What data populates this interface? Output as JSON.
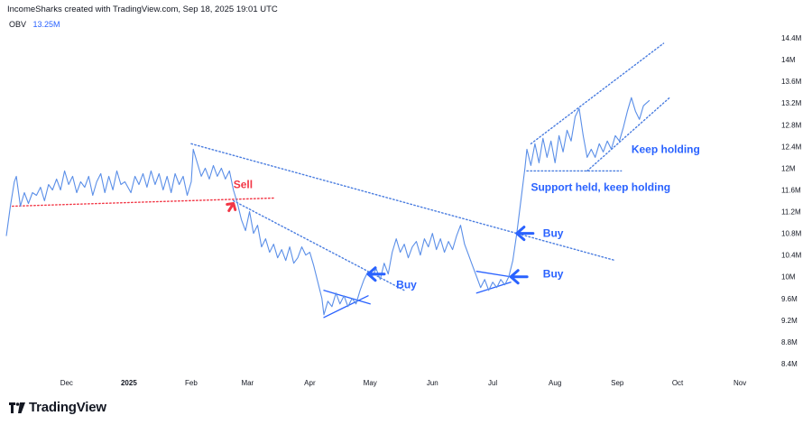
{
  "header": {
    "credit": "IncomeSharks created with TradingView.com, Sep 18, 2025 19:01 UTC"
  },
  "legend": {
    "indicator": "OBV",
    "value": "13.25M"
  },
  "footer": {
    "brand": "TradingView",
    "logo_icon": "tradingview-logo-icon"
  },
  "colors": {
    "line": "#5b8fe8",
    "accent": "#2962ff",
    "sell": "#f23645",
    "dots": "#4a7de0"
  },
  "chart_data": {
    "type": "line",
    "title": "",
    "xlabel": "",
    "ylabel": "",
    "y_unit": "M",
    "ylim": [
      8.2,
      14.6
    ],
    "x_range": [
      "2024-11-01",
      "2025-11-18"
    ],
    "y_ticks": [
      "14.4M",
      "14M",
      "13.6M",
      "13.2M",
      "12.8M",
      "12.4M",
      "12M",
      "11.6M",
      "11.2M",
      "10.8M",
      "10.4M",
      "10M",
      "9.6M",
      "9.2M",
      "8.8M",
      "8.4M"
    ],
    "x_ticks": [
      {
        "label": "Dec",
        "date": "2024-12-01"
      },
      {
        "label": "2025",
        "date": "2025-01-01",
        "bold": true
      },
      {
        "label": "Feb",
        "date": "2025-02-01"
      },
      {
        "label": "Mar",
        "date": "2025-03-01"
      },
      {
        "label": "Apr",
        "date": "2025-04-01"
      },
      {
        "label": "May",
        "date": "2025-05-01"
      },
      {
        "label": "Jun",
        "date": "2025-06-01"
      },
      {
        "label": "Jul",
        "date": "2025-07-01"
      },
      {
        "label": "Aug",
        "date": "2025-08-01"
      },
      {
        "label": "Sep",
        "date": "2025-09-01"
      },
      {
        "label": "Oct",
        "date": "2025-10-01"
      },
      {
        "label": "Nov",
        "date": "2025-11-01"
      }
    ],
    "series": [
      {
        "name": "OBV",
        "points": [
          [
            "2024-11-01",
            10.75
          ],
          [
            "2024-11-03",
            11.3
          ],
          [
            "2024-11-05",
            11.75
          ],
          [
            "2024-11-06",
            11.85
          ],
          [
            "2024-11-08",
            11.3
          ],
          [
            "2024-11-10",
            11.55
          ],
          [
            "2024-11-12",
            11.35
          ],
          [
            "2024-11-14",
            11.55
          ],
          [
            "2024-11-16",
            11.5
          ],
          [
            "2024-11-18",
            11.65
          ],
          [
            "2024-11-20",
            11.4
          ],
          [
            "2024-11-22",
            11.7
          ],
          [
            "2024-11-24",
            11.6
          ],
          [
            "2024-11-26",
            11.8
          ],
          [
            "2024-11-28",
            11.6
          ],
          [
            "2024-11-30",
            11.95
          ],
          [
            "2024-12-02",
            11.7
          ],
          [
            "2024-12-04",
            11.85
          ],
          [
            "2024-12-06",
            11.55
          ],
          [
            "2024-12-08",
            11.75
          ],
          [
            "2024-12-10",
            11.65
          ],
          [
            "2024-12-12",
            11.85
          ],
          [
            "2024-12-14",
            11.5
          ],
          [
            "2024-12-16",
            11.75
          ],
          [
            "2024-12-18",
            11.9
          ],
          [
            "2024-12-20",
            11.55
          ],
          [
            "2024-12-22",
            11.85
          ],
          [
            "2024-12-24",
            11.6
          ],
          [
            "2024-12-26",
            11.95
          ],
          [
            "2024-12-28",
            11.7
          ],
          [
            "2024-12-30",
            11.75
          ],
          [
            "2025-01-02",
            11.55
          ],
          [
            "2025-01-04",
            11.85
          ],
          [
            "2025-01-06",
            11.7
          ],
          [
            "2025-01-08",
            11.9
          ],
          [
            "2025-01-10",
            11.65
          ],
          [
            "2025-01-12",
            11.95
          ],
          [
            "2025-01-14",
            11.7
          ],
          [
            "2025-01-16",
            11.9
          ],
          [
            "2025-01-18",
            11.6
          ],
          [
            "2025-01-20",
            11.85
          ],
          [
            "2025-01-22",
            11.55
          ],
          [
            "2025-01-24",
            11.9
          ],
          [
            "2025-01-26",
            11.7
          ],
          [
            "2025-01-28",
            11.85
          ],
          [
            "2025-01-30",
            11.5
          ],
          [
            "2025-02-01",
            11.75
          ],
          [
            "2025-02-02",
            12.35
          ],
          [
            "2025-02-04",
            12.1
          ],
          [
            "2025-02-06",
            11.85
          ],
          [
            "2025-02-08",
            12.0
          ],
          [
            "2025-02-10",
            11.8
          ],
          [
            "2025-02-12",
            12.05
          ],
          [
            "2025-02-14",
            11.85
          ],
          [
            "2025-02-16",
            12.0
          ],
          [
            "2025-02-18",
            11.8
          ],
          [
            "2025-02-20",
            11.95
          ],
          [
            "2025-02-22",
            11.6
          ],
          [
            "2025-02-24",
            11.35
          ],
          [
            "2025-02-26",
            11.05
          ],
          [
            "2025-02-28",
            10.85
          ],
          [
            "2025-03-02",
            11.2
          ],
          [
            "2025-03-04",
            10.8
          ],
          [
            "2025-03-06",
            10.95
          ],
          [
            "2025-03-08",
            10.55
          ],
          [
            "2025-03-10",
            10.7
          ],
          [
            "2025-03-12",
            10.45
          ],
          [
            "2025-03-14",
            10.6
          ],
          [
            "2025-03-16",
            10.35
          ],
          [
            "2025-03-18",
            10.5
          ],
          [
            "2025-03-20",
            10.3
          ],
          [
            "2025-03-22",
            10.55
          ],
          [
            "2025-03-24",
            10.25
          ],
          [
            "2025-03-26",
            10.35
          ],
          [
            "2025-03-28",
            10.55
          ],
          [
            "2025-03-30",
            10.4
          ],
          [
            "2025-04-01",
            10.45
          ],
          [
            "2025-04-03",
            10.2
          ],
          [
            "2025-04-05",
            9.9
          ],
          [
            "2025-04-07",
            9.6
          ],
          [
            "2025-04-08",
            9.3
          ],
          [
            "2025-04-10",
            9.55
          ],
          [
            "2025-04-12",
            9.45
          ],
          [
            "2025-04-14",
            9.7
          ],
          [
            "2025-04-16",
            9.5
          ],
          [
            "2025-04-18",
            9.65
          ],
          [
            "2025-04-20",
            9.45
          ],
          [
            "2025-04-22",
            9.6
          ],
          [
            "2025-04-24",
            9.5
          ],
          [
            "2025-04-26",
            9.75
          ],
          [
            "2025-04-28",
            9.95
          ],
          [
            "2025-04-30",
            10.1
          ],
          [
            "2025-05-02",
            10.0
          ],
          [
            "2025-05-04",
            10.15
          ],
          [
            "2025-05-06",
            9.95
          ],
          [
            "2025-05-08",
            10.25
          ],
          [
            "2025-05-10",
            10.05
          ],
          [
            "2025-05-12",
            10.45
          ],
          [
            "2025-05-14",
            10.7
          ],
          [
            "2025-05-16",
            10.45
          ],
          [
            "2025-05-18",
            10.6
          ],
          [
            "2025-05-20",
            10.35
          ],
          [
            "2025-05-22",
            10.55
          ],
          [
            "2025-05-24",
            10.65
          ],
          [
            "2025-05-26",
            10.4
          ],
          [
            "2025-05-28",
            10.7
          ],
          [
            "2025-05-30",
            10.55
          ],
          [
            "2025-06-01",
            10.8
          ],
          [
            "2025-06-03",
            10.5
          ],
          [
            "2025-06-05",
            10.7
          ],
          [
            "2025-06-07",
            10.45
          ],
          [
            "2025-06-09",
            10.65
          ],
          [
            "2025-06-11",
            10.5
          ],
          [
            "2025-06-13",
            10.75
          ],
          [
            "2025-06-15",
            10.95
          ],
          [
            "2025-06-17",
            10.6
          ],
          [
            "2025-06-19",
            10.4
          ],
          [
            "2025-06-21",
            10.2
          ],
          [
            "2025-06-23",
            10.0
          ],
          [
            "2025-06-25",
            9.8
          ],
          [
            "2025-06-27",
            9.95
          ],
          [
            "2025-06-29",
            9.75
          ],
          [
            "2025-07-01",
            9.9
          ],
          [
            "2025-07-03",
            9.8
          ],
          [
            "2025-07-05",
            9.95
          ],
          [
            "2025-07-07",
            9.85
          ],
          [
            "2025-07-09",
            10.0
          ],
          [
            "2025-07-11",
            10.3
          ],
          [
            "2025-07-13",
            10.8
          ],
          [
            "2025-07-15",
            11.4
          ],
          [
            "2025-07-17",
            12.0
          ],
          [
            "2025-07-18",
            12.35
          ],
          [
            "2025-07-20",
            12.05
          ],
          [
            "2025-07-22",
            12.45
          ],
          [
            "2025-07-24",
            12.1
          ],
          [
            "2025-07-26",
            12.55
          ],
          [
            "2025-07-28",
            12.2
          ],
          [
            "2025-07-30",
            12.5
          ],
          [
            "2025-08-01",
            12.1
          ],
          [
            "2025-08-03",
            12.6
          ],
          [
            "2025-08-05",
            12.3
          ],
          [
            "2025-08-07",
            12.7
          ],
          [
            "2025-08-09",
            12.5
          ],
          [
            "2025-08-11",
            12.95
          ],
          [
            "2025-08-13",
            13.1
          ],
          [
            "2025-08-15",
            12.6
          ],
          [
            "2025-08-17",
            12.2
          ],
          [
            "2025-08-19",
            12.35
          ],
          [
            "2025-08-21",
            12.2
          ],
          [
            "2025-08-23",
            12.45
          ],
          [
            "2025-08-25",
            12.3
          ],
          [
            "2025-08-27",
            12.5
          ],
          [
            "2025-08-29",
            12.35
          ],
          [
            "2025-08-31",
            12.6
          ],
          [
            "2025-09-02",
            12.5
          ],
          [
            "2025-09-04",
            12.75
          ],
          [
            "2025-09-06",
            13.05
          ],
          [
            "2025-09-08",
            13.3
          ],
          [
            "2025-09-10",
            13.05
          ],
          [
            "2025-09-12",
            12.9
          ],
          [
            "2025-09-14",
            13.15
          ],
          [
            "2025-09-17",
            13.25
          ]
        ]
      }
    ],
    "lines": [
      {
        "name": "upper-downtrend-line",
        "style": "dotted",
        "color": "#4a7de0",
        "from": [
          "2025-02-01",
          12.45
        ],
        "to": [
          "2025-08-31",
          10.3
        ]
      },
      {
        "name": "lower-downtrend-line",
        "style": "dotted",
        "color": "#4a7de0",
        "from": [
          "2025-02-22",
          11.4
        ],
        "to": [
          "2025-05-18",
          9.75
        ]
      },
      {
        "name": "sell-level-line",
        "style": "dotted",
        "color": "#f23645",
        "from": [
          "2024-11-04",
          11.3
        ],
        "to": [
          "2025-03-14",
          11.45
        ]
      },
      {
        "name": "upper-channel-line",
        "style": "dotted",
        "color": "#4a7de0",
        "from": [
          "2025-07-20",
          12.45
        ],
        "to": [
          "2025-09-24",
          14.3
        ]
      },
      {
        "name": "lower-channel-line",
        "style": "dotted",
        "color": "#4a7de0",
        "from": [
          "2025-08-17",
          11.95
        ],
        "to": [
          "2025-09-27",
          13.3
        ]
      },
      {
        "name": "support-level-line",
        "style": "dotted",
        "color": "#4a7de0",
        "from": [
          "2025-07-18",
          11.95
        ],
        "to": [
          "2025-09-03",
          11.95
        ]
      },
      {
        "name": "april-wedge-upper",
        "style": "solid",
        "color": "#2962ff",
        "from": [
          "2025-04-08",
          9.75
        ],
        "to": [
          "2025-05-01",
          9.5
        ]
      },
      {
        "name": "april-wedge-lower",
        "style": "solid",
        "color": "#2962ff",
        "from": [
          "2025-04-08",
          9.25
        ],
        "to": [
          "2025-04-30",
          9.65
        ]
      },
      {
        "name": "july-wedge-upper",
        "style": "solid",
        "color": "#2962ff",
        "from": [
          "2025-06-23",
          10.1
        ],
        "to": [
          "2025-07-10",
          10.0
        ]
      },
      {
        "name": "july-wedge-lower",
        "style": "solid",
        "color": "#2962ff",
        "from": [
          "2025-06-23",
          9.7
        ],
        "to": [
          "2025-07-10",
          9.9
        ]
      }
    ],
    "annotations": [
      {
        "name": "sell",
        "text": "Sell",
        "color": "#f23645",
        "at": [
          "2025-02-22",
          11.7
        ]
      },
      {
        "name": "buy-may",
        "text": "Buy",
        "color": "#2962ff",
        "at": [
          "2025-05-14",
          9.85
        ]
      },
      {
        "name": "buy-jul-upper",
        "text": "Buy",
        "color": "#2962ff",
        "at": [
          "2025-07-26",
          10.8
        ]
      },
      {
        "name": "buy-jul-lower",
        "text": "Buy",
        "color": "#2962ff",
        "at": [
          "2025-07-26",
          10.05
        ]
      },
      {
        "name": "support-held",
        "text": "Support held, keep holding",
        "color": "#2962ff",
        "at": [
          "2025-07-20",
          11.65
        ]
      },
      {
        "name": "keep-holding",
        "text": "Keep holding",
        "color": "#2962ff",
        "at": [
          "2025-09-08",
          12.35
        ]
      }
    ],
    "arrows": [
      {
        "name": "sell-arrow",
        "color": "#f23645",
        "direction": "up-right",
        "tip": [
          "2025-02-22",
          11.35
        ]
      },
      {
        "name": "buy-may-arrow",
        "color": "#2962ff",
        "direction": "left",
        "tip": [
          "2025-04-30",
          10.05
        ]
      },
      {
        "name": "buy-jul-upper-arrow",
        "color": "#2962ff",
        "direction": "left",
        "tip": [
          "2025-07-13",
          10.8
        ]
      },
      {
        "name": "buy-jul-lower-arrow",
        "color": "#2962ff",
        "direction": "left",
        "tip": [
          "2025-07-10",
          10.0
        ]
      }
    ]
  }
}
